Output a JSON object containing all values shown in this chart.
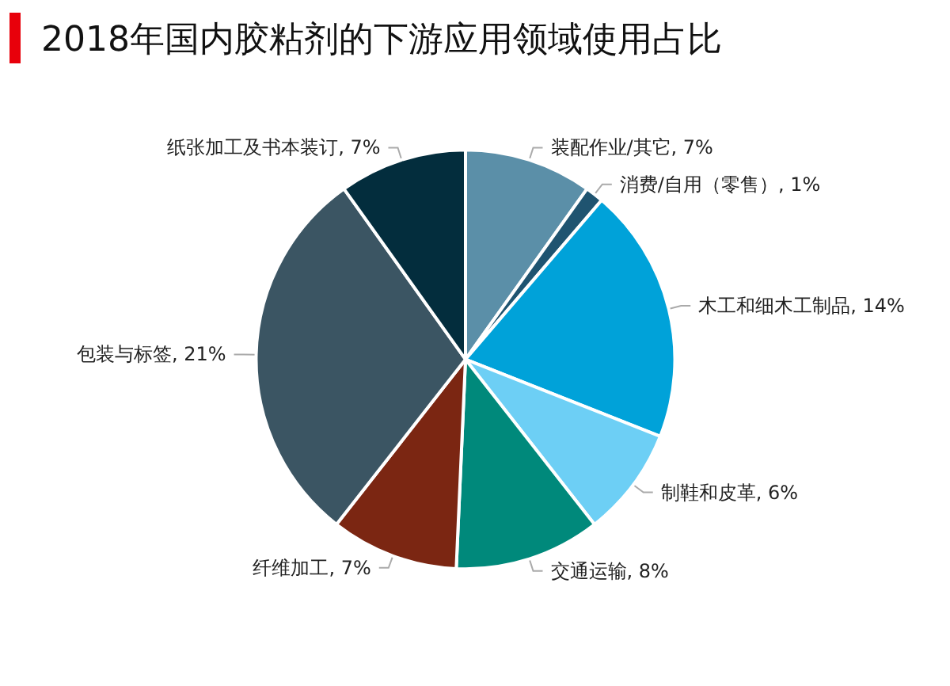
{
  "chart_data": {
    "type": "pie",
    "title": "2018年国内胶粘剂的下游应用领域使用占比",
    "categories": [
      "装配作业/其它",
      "消费/自用（零售）",
      "木工和细木工制品",
      "制鞋和皮革",
      "交通运输",
      "纤维加工",
      "包装与标签",
      "纸张加工及书本装订"
    ],
    "values": [
      7,
      1,
      14,
      6,
      8,
      7,
      21,
      7
    ],
    "value_labels": [
      "7%",
      "1%",
      "14%",
      "6%",
      "8%",
      "7%",
      "21%",
      "7%"
    ],
    "colors": [
      "#5b8fa8",
      "#1f5470",
      "#00a2d9",
      "#6dcff5",
      "#00897b",
      "#7b2612",
      "#3b5563",
      "#032d3d"
    ],
    "data_labels": true,
    "legend": false
  }
}
